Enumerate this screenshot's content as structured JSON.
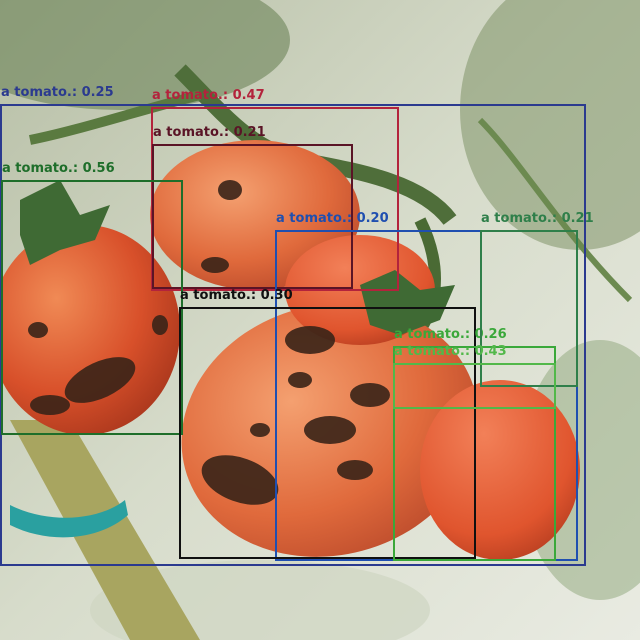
{
  "image": {
    "subject": "tomato plant",
    "background_color": "#d9ddd0"
  },
  "detections": [
    {
      "label": "a tomato.: 0.25",
      "color": "#2b3a8f"
    },
    {
      "label": "a tomato.: 0.47",
      "color": "#b3233c"
    },
    {
      "label": "a tomato.: 0.21",
      "color": "#5a1426"
    },
    {
      "label": "a tomato.: 0.56",
      "color": "#1e6e2a"
    },
    {
      "label": "a tomato.: 0.20",
      "color": "#1f4fb0"
    },
    {
      "label": "a tomato.: 0.30",
      "color": "#101010"
    },
    {
      "label": "a tomato.: 0.26",
      "color": "#3aa83a"
    },
    {
      "label": "a tomato.: 0.21",
      "color": "#2f7f4a"
    },
    {
      "label": "a tomato.: 0.43",
      "color": "#52b84a"
    }
  ]
}
